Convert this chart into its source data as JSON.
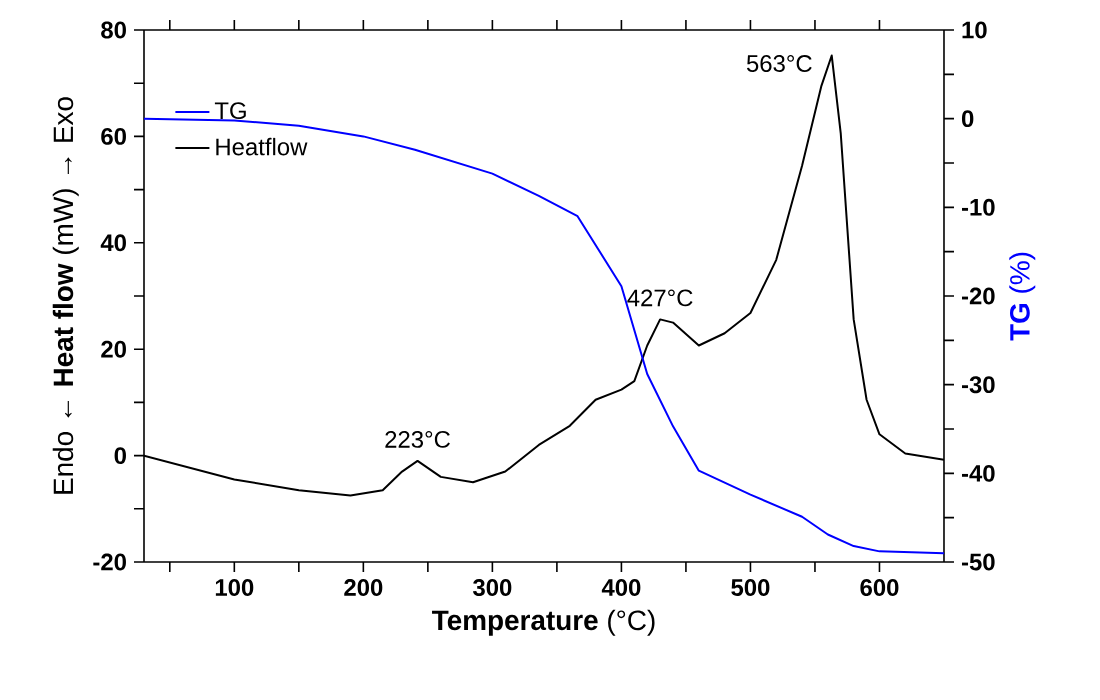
{
  "chart_data": {
    "type": "line",
    "xlabel": "**Temperature** (°C)",
    "ylabel": "Endo ← **Heat flow** (mW) → Exo",
    "y2label": "**TG** (%)",
    "xlim": [
      30,
      650
    ],
    "ylim": [
      -20,
      80
    ],
    "y2lim": [
      -50,
      10
    ],
    "xticks": [
      {
        "value": 50,
        "label": null
      },
      100,
      {
        "value": 150,
        "label": null
      },
      200,
      {
        "value": 250,
        "label": null
      },
      300,
      {
        "value": 350,
        "label": null
      },
      400,
      {
        "value": 450,
        "label": null
      },
      500,
      {
        "value": 550,
        "label": null
      },
      600
    ],
    "yticks": [
      -20,
      {
        "value": -10,
        "label": null
      },
      0,
      {
        "value": 10,
        "label": null
      },
      20,
      {
        "value": 30,
        "label": null
      },
      40,
      {
        "value": 50,
        "label": null
      },
      60,
      {
        "value": 70,
        "label": null
      },
      80
    ],
    "y2ticks": [
      -50,
      {
        "value": -45,
        "label": null
      },
      -40,
      {
        "value": -35,
        "label": null
      },
      -30,
      {
        "value": -25,
        "label": null
      },
      -20,
      {
        "value": -15,
        "label": null
      },
      -10,
      {
        "value": -5,
        "label": null
      },
      0,
      {
        "value": 5,
        "label": null
      },
      10
    ],
    "series": [
      {
        "name": "TG",
        "color": "#0000ff",
        "axis": "y2",
        "x": [
          30,
          100,
          150,
          200,
          240,
          300,
          336,
          366,
          400,
          420,
          440,
          460,
          500,
          540,
          560,
          580,
          600,
          650
        ],
        "values": [
          0,
          -0.2,
          -0.8,
          -2,
          -3.5,
          -6.2,
          -8.7,
          -11,
          -18.9,
          -28.8,
          -34.7,
          -39.7,
          -42.4,
          -44.9,
          -46.9,
          -48.2,
          -48.8,
          -49
        ]
      },
      {
        "name": "Heatflow",
        "color": "#000000",
        "x": [
          30,
          100,
          150,
          190,
          215,
          230,
          242,
          260,
          285,
          310,
          336,
          360,
          380,
          400,
          410,
          420,
          430,
          440,
          460,
          480,
          500,
          520,
          540,
          555,
          563,
          570,
          580,
          590,
          600,
          620,
          650
        ],
        "values": [
          0,
          -4.5,
          -6.5,
          -7.5,
          -6.5,
          -3,
          -1,
          -4,
          -5,
          -3,
          2,
          5.6,
          10.5,
          12.4,
          14,
          20.7,
          25.6,
          25,
          20.7,
          23,
          26.8,
          36.8,
          54.5,
          69.5,
          75.2,
          60.5,
          25.6,
          10.5,
          4,
          0.4,
          -0.8
        ]
      }
    ],
    "annotations": [
      {
        "text": "223°C",
        "x": 242,
        "y": -1
      },
      {
        "text": "427°C",
        "x": 430,
        "y": 25.6
      },
      {
        "text": "563°C",
        "x": 563,
        "y": 75.2
      }
    ],
    "legend": "top left",
    "grid": false,
    "line_style": "solid",
    "marker": "none"
  }
}
